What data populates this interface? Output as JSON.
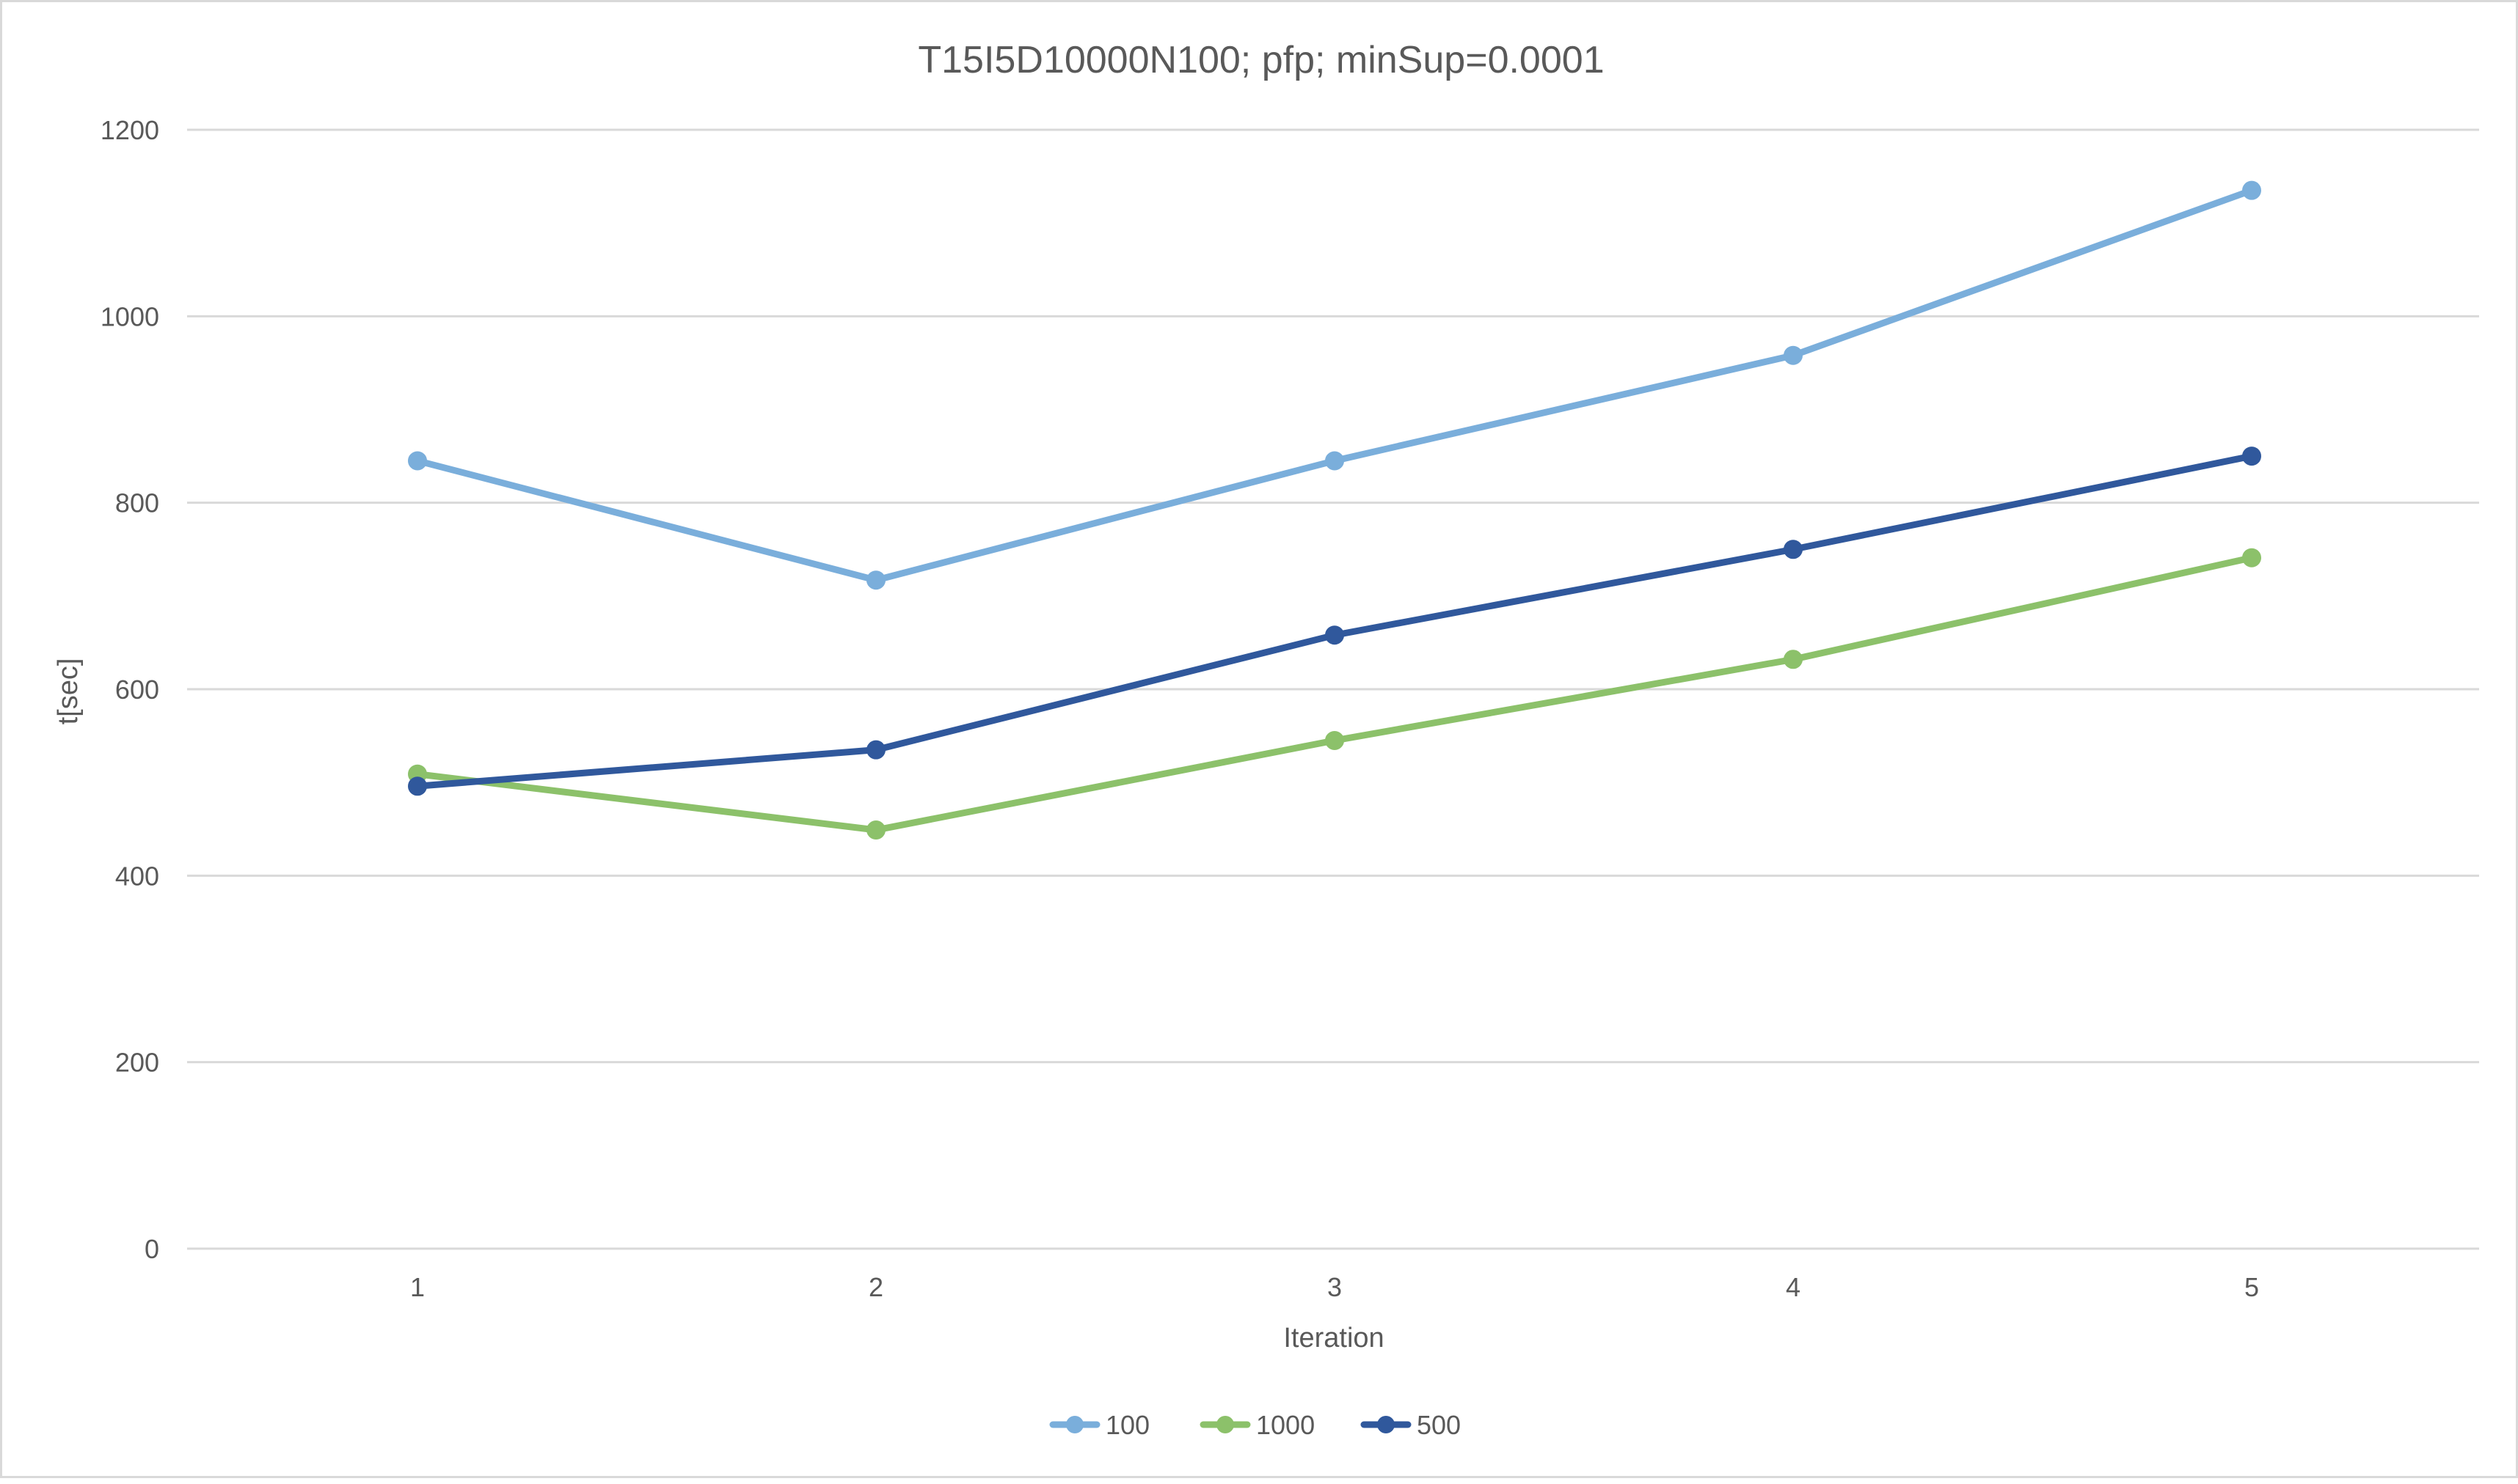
{
  "chart_data": {
    "type": "line",
    "title": "T15I5D10000N100; pfp; minSup=0.0001",
    "xlabel": "Iteration",
    "ylabel": "t[sec]",
    "categories": [
      "1",
      "2",
      "3",
      "4",
      "5"
    ],
    "ylim": [
      0,
      1200
    ],
    "yticks": [
      0,
      200,
      400,
      600,
      800,
      1000,
      1200
    ],
    "grid": true,
    "legend_position": "bottom",
    "series": [
      {
        "name": "100",
        "color": "#7aaedb",
        "values": [
          845,
          717,
          845,
          958,
          1135
        ]
      },
      {
        "name": "1000",
        "color": "#8cc16a",
        "values": [
          509,
          449,
          545,
          632,
          741
        ]
      },
      {
        "name": "500",
        "color": "#30589c",
        "values": [
          496,
          535,
          658,
          750,
          850
        ]
      }
    ]
  }
}
